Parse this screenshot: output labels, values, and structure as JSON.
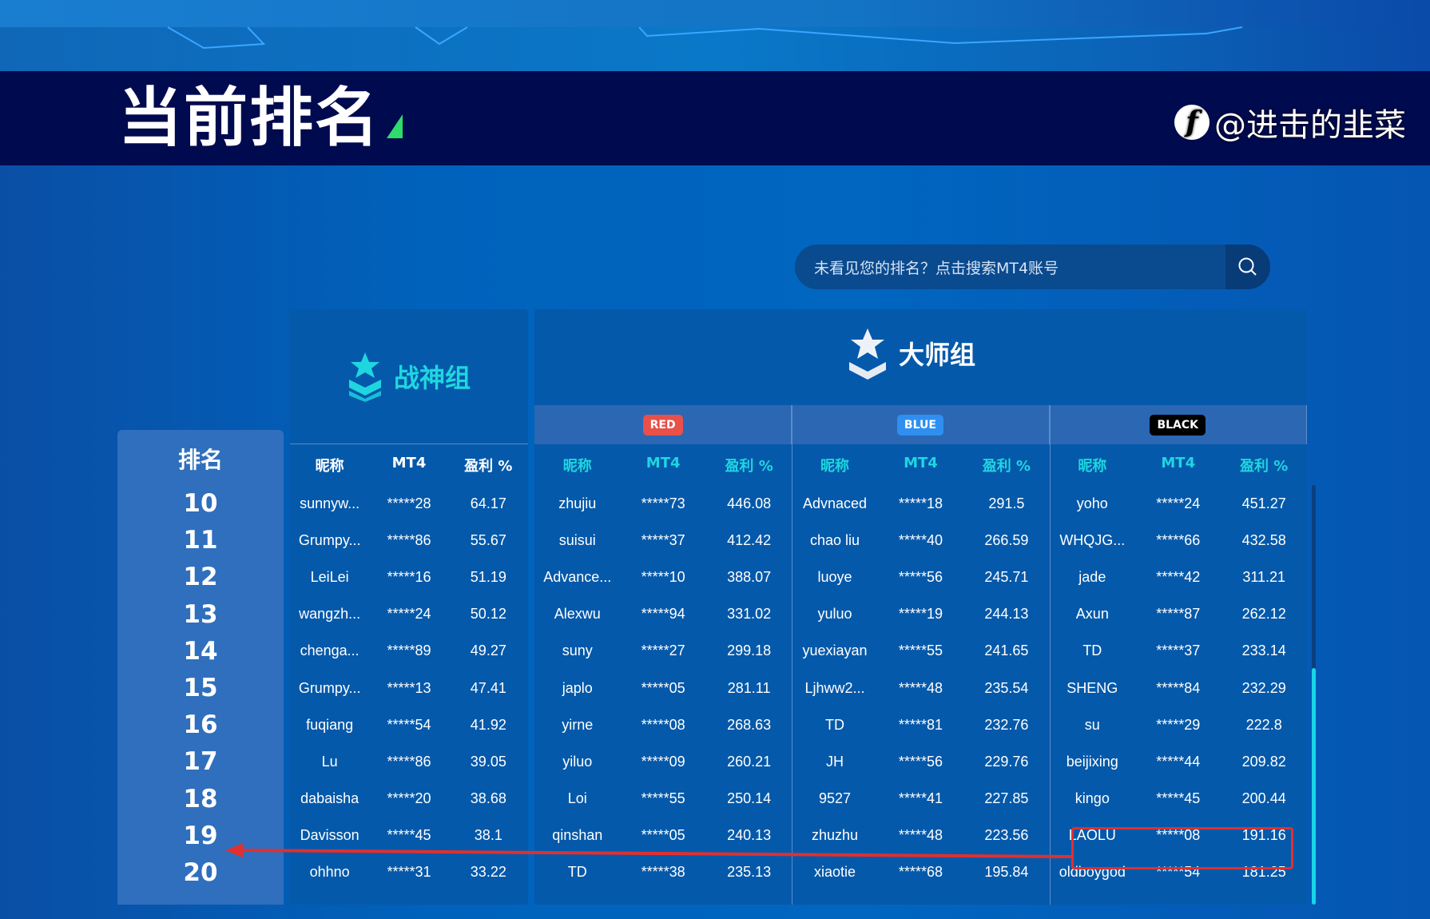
{
  "header": {
    "title": "当前排名"
  },
  "search": {
    "placeholder": "未看见您的排名？点击搜索MT4账号",
    "icon": "search-icon"
  },
  "rank_header": "排名",
  "ranks": [
    "10",
    "11",
    "12",
    "13",
    "14",
    "15",
    "16",
    "17",
    "18",
    "19",
    "20"
  ],
  "columns": {
    "nick": "昵称",
    "mt4": "MT4",
    "profit": "盈利 %"
  },
  "groups": {
    "zhanshen": {
      "title": "战神组",
      "color": "#1fd6e0",
      "rows": [
        [
          "sunnyw...",
          "*****28",
          "64.17"
        ],
        [
          "Grumpy...",
          "*****86",
          "55.67"
        ],
        [
          "LeiLei",
          "*****16",
          "51.19"
        ],
        [
          "wangzh...",
          "*****24",
          "50.12"
        ],
        [
          "chenga...",
          "*****89",
          "49.27"
        ],
        [
          "Grumpy...",
          "*****13",
          "47.41"
        ],
        [
          "fuqiang",
          "*****54",
          "41.92"
        ],
        [
          "Lu",
          "*****86",
          "39.05"
        ],
        [
          "dabaisha",
          "*****20",
          "38.68"
        ],
        [
          "Davisson",
          "*****45",
          "38.1"
        ],
        [
          "ohhno",
          "*****31",
          "33.22"
        ]
      ]
    },
    "dashi": {
      "title": "大师组",
      "teams": [
        {
          "badge": "RED",
          "color": "#e8504a",
          "rows": [
            [
              "zhujiu",
              "*****73",
              "446.08"
            ],
            [
              "suisui",
              "*****37",
              "412.42"
            ],
            [
              "Advance...",
              "*****10",
              "388.07"
            ],
            [
              "Alexwu",
              "*****94",
              "331.02"
            ],
            [
              "suny",
              "*****27",
              "299.18"
            ],
            [
              "japlo",
              "*****05",
              "281.11"
            ],
            [
              "yirne",
              "*****08",
              "268.63"
            ],
            [
              "yiluo",
              "*****09",
              "260.21"
            ],
            [
              "Loi",
              "*****55",
              "250.14"
            ],
            [
              "qinshan",
              "*****05",
              "240.13"
            ],
            [
              "TD",
              "*****38",
              "235.13"
            ]
          ]
        },
        {
          "badge": "BLUE",
          "color": "#2f8ff0",
          "rows": [
            [
              "Advnaced",
              "*****18",
              "291.5"
            ],
            [
              "chao liu",
              "*****40",
              "266.59"
            ],
            [
              "luoye",
              "*****56",
              "245.71"
            ],
            [
              "yuluo",
              "*****19",
              "244.13"
            ],
            [
              "yuexiayan",
              "*****55",
              "241.65"
            ],
            [
              "Ljhww2...",
              "*****48",
              "235.54"
            ],
            [
              "TD",
              "*****81",
              "232.76"
            ],
            [
              "JH",
              "*****56",
              "229.76"
            ],
            [
              "9527",
              "*****41",
              "227.85"
            ],
            [
              "zhuzhu",
              "*****48",
              "223.56"
            ],
            [
              "xiaotie",
              "*****68",
              "195.84"
            ]
          ]
        },
        {
          "badge": "BLACK",
          "color": "#000000",
          "rows": [
            [
              "yoho",
              "*****24",
              "451.27"
            ],
            [
              "WHQJG...",
              "*****66",
              "432.58"
            ],
            [
              "jade",
              "*****42",
              "311.21"
            ],
            [
              "Axun",
              "*****87",
              "262.12"
            ],
            [
              "TD",
              "*****37",
              "233.14"
            ],
            [
              "SHENG",
              "*****84",
              "232.29"
            ],
            [
              "su",
              "*****29",
              "222.8"
            ],
            [
              "beijixing",
              "*****44",
              "209.82"
            ],
            [
              "kingo",
              "*****45",
              "200.44"
            ],
            [
              "LAOLU",
              "*****08",
              "191.16"
            ],
            [
              "oldboygod",
              "*****54",
              "181.25"
            ]
          ]
        }
      ]
    }
  },
  "annotation": {
    "color": "#e0302f"
  },
  "watermark": {
    "text": "@进击的韭菜"
  }
}
